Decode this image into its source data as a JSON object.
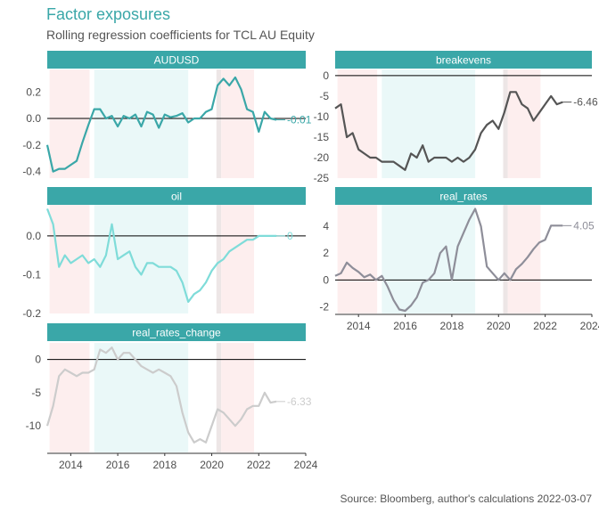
{
  "title": "Factor exposures",
  "subtitle": "Rolling regression coefficients for TCL AU Equity",
  "caption": "Source: Bloomberg, author's calculations 2022-03-07",
  "chart_data": {
    "type": "line",
    "x_ticks": [
      "2014",
      "2016",
      "2018",
      "2020",
      "2022",
      "2024"
    ],
    "xlim": [
      2013,
      2024
    ],
    "regimes": [
      {
        "from": 2013.1,
        "to": 2014.8,
        "color": "#fdeeee"
      },
      {
        "from": 2015.0,
        "to": 2019.0,
        "color": "#eaf8f8"
      },
      {
        "from": 2020.2,
        "to": 2020.4,
        "color": "#ede6e6"
      },
      {
        "from": 2020.4,
        "to": 2021.8,
        "color": "#fdeeee"
      }
    ],
    "panels": [
      {
        "name": "AUDUSD",
        "color": "#3aa7a8",
        "ylim": [
          -0.45,
          0.37
        ],
        "yticks": [
          "0.2",
          "0.0",
          "-0.2",
          "-0.4"
        ],
        "ytick_values": [
          0.2,
          0.0,
          -0.2,
          -0.4
        ],
        "end_label": "-0.01",
        "x": [
          2013.0,
          2013.25,
          2013.5,
          2013.75,
          2014.0,
          2014.25,
          2014.5,
          2014.75,
          2015.0,
          2015.25,
          2015.5,
          2015.75,
          2016.0,
          2016.25,
          2016.5,
          2016.75,
          2017.0,
          2017.25,
          2017.5,
          2017.75,
          2018.0,
          2018.25,
          2018.5,
          2018.75,
          2019.0,
          2019.25,
          2019.5,
          2019.75,
          2020.0,
          2020.25,
          2020.5,
          2020.75,
          2021.0,
          2021.25,
          2021.5,
          2021.75,
          2022.0,
          2022.25,
          2022.5,
          2022.75
        ],
        "values": [
          -0.2,
          -0.4,
          -0.38,
          -0.38,
          -0.35,
          -0.32,
          -0.18,
          -0.05,
          0.07,
          0.07,
          0.0,
          0.02,
          -0.06,
          0.02,
          0.0,
          0.03,
          -0.06,
          0.05,
          0.03,
          -0.07,
          0.03,
          0.01,
          0.02,
          0.04,
          -0.03,
          0.0,
          0.0,
          0.05,
          0.07,
          0.25,
          0.3,
          0.25,
          0.31,
          0.22,
          0.07,
          0.05,
          -0.1,
          0.05,
          0.0,
          -0.01
        ]
      },
      {
        "name": "breakevens",
        "color": "#555555",
        "ylim": [
          -25,
          1.5
        ],
        "yticks": [
          "0",
          "-5",
          "-10",
          "-15",
          "-20",
          "-25"
        ],
        "ytick_values": [
          0,
          -5,
          -10,
          -15,
          -20,
          -25
        ],
        "end_label": "-6.46",
        "x": [
          2013.0,
          2013.25,
          2013.5,
          2013.75,
          2014.0,
          2014.25,
          2014.5,
          2014.75,
          2015.0,
          2015.25,
          2015.5,
          2015.75,
          2016.0,
          2016.25,
          2016.5,
          2016.75,
          2017.0,
          2017.25,
          2017.5,
          2017.75,
          2018.0,
          2018.25,
          2018.5,
          2018.75,
          2019.0,
          2019.25,
          2019.5,
          2019.75,
          2020.0,
          2020.25,
          2020.5,
          2020.75,
          2021.0,
          2021.25,
          2021.5,
          2021.75,
          2022.0,
          2022.25,
          2022.5,
          2022.75
        ],
        "values": [
          -8,
          -7,
          -15,
          -14,
          -18,
          -19,
          -20,
          -20,
          -21,
          -21,
          -21,
          -22,
          -23,
          -19,
          -20,
          -17,
          -21,
          -20,
          -20,
          -20,
          -21,
          -20,
          -21,
          -20,
          -18,
          -14,
          -12,
          -11,
          -13,
          -9,
          -4,
          -4,
          -7,
          -8,
          -11,
          -9,
          -7,
          -5,
          -7,
          -6.46
        ]
      },
      {
        "name": "oil",
        "color": "#7fdcd9",
        "ylim": [
          -0.2,
          0.08
        ],
        "yticks": [
          "0.0",
          "-0.1",
          "-0.2"
        ],
        "ytick_values": [
          0.0,
          -0.1,
          -0.2
        ],
        "end_label": "0",
        "x": [
          2013.0,
          2013.25,
          2013.5,
          2013.75,
          2014.0,
          2014.25,
          2014.5,
          2014.75,
          2015.0,
          2015.25,
          2015.5,
          2015.75,
          2016.0,
          2016.25,
          2016.5,
          2016.75,
          2017.0,
          2017.25,
          2017.5,
          2017.75,
          2018.0,
          2018.25,
          2018.5,
          2018.75,
          2019.0,
          2019.25,
          2019.5,
          2019.75,
          2020.0,
          2020.25,
          2020.5,
          2020.75,
          2021.0,
          2021.25,
          2021.5,
          2021.75,
          2022.0,
          2022.25,
          2022.5,
          2022.75
        ],
        "values": [
          0.07,
          0.03,
          -0.08,
          -0.05,
          -0.07,
          -0.06,
          -0.05,
          -0.07,
          -0.06,
          -0.08,
          -0.05,
          0.03,
          -0.06,
          -0.05,
          -0.04,
          -0.08,
          -0.1,
          -0.07,
          -0.07,
          -0.08,
          -0.08,
          -0.08,
          -0.09,
          -0.12,
          -0.17,
          -0.15,
          -0.14,
          -0.12,
          -0.09,
          -0.07,
          -0.06,
          -0.04,
          -0.03,
          -0.02,
          -0.01,
          -0.01,
          0.0,
          0.0,
          0.0,
          0.0
        ]
      },
      {
        "name": "real_rates",
        "color": "#8e8e99",
        "ylim": [
          -2.5,
          5.6
        ],
        "yticks": [
          "4",
          "2",
          "0",
          "-2"
        ],
        "ytick_values": [
          4,
          2,
          0,
          -2
        ],
        "end_label": "4.05",
        "x": [
          2013.0,
          2013.25,
          2013.5,
          2013.75,
          2014.0,
          2014.25,
          2014.5,
          2014.75,
          2015.0,
          2015.25,
          2015.5,
          2015.75,
          2016.0,
          2016.25,
          2016.5,
          2016.75,
          2017.0,
          2017.25,
          2017.5,
          2017.75,
          2018.0,
          2018.25,
          2018.5,
          2018.75,
          2019.0,
          2019.25,
          2019.5,
          2019.75,
          2020.0,
          2020.25,
          2020.5,
          2020.75,
          2021.0,
          2021.25,
          2021.5,
          2021.75,
          2022.0,
          2022.25,
          2022.5,
          2022.75
        ],
        "values": [
          0.3,
          0.5,
          1.3,
          0.9,
          0.6,
          0.2,
          0.4,
          0.0,
          0.3,
          -0.5,
          -1.5,
          -2.2,
          -2.3,
          -1.9,
          -1.3,
          -0.2,
          0.0,
          0.5,
          2.0,
          2.5,
          0.0,
          2.5,
          3.5,
          4.5,
          5.3,
          4.0,
          1.0,
          0.5,
          0.0,
          0.5,
          0.0,
          0.8,
          1.2,
          1.7,
          2.3,
          2.8,
          3.0,
          4.05,
          4.05,
          4.05
        ]
      },
      {
        "name": "real_rates_change",
        "color": "#cccccc",
        "ylim": [
          -14,
          2.5
        ],
        "yticks": [
          "0",
          "-5",
          "-10"
        ],
        "ytick_values": [
          0,
          -5,
          -10
        ],
        "end_label": "-6.33",
        "x": [
          2013.0,
          2013.25,
          2013.5,
          2013.75,
          2014.0,
          2014.25,
          2014.5,
          2014.75,
          2015.0,
          2015.25,
          2015.5,
          2015.75,
          2016.0,
          2016.25,
          2016.5,
          2016.75,
          2017.0,
          2017.25,
          2017.5,
          2017.75,
          2018.0,
          2018.25,
          2018.5,
          2018.75,
          2019.0,
          2019.25,
          2019.5,
          2019.75,
          2020.0,
          2020.25,
          2020.5,
          2020.75,
          2021.0,
          2021.25,
          2021.5,
          2021.75,
          2022.0,
          2022.25,
          2022.5,
          2022.75
        ],
        "values": [
          -10,
          -7,
          -2.5,
          -1.5,
          -2,
          -2.5,
          -2,
          -2,
          -1.5,
          1.5,
          1.0,
          1.8,
          0.0,
          1.0,
          1.0,
          0.0,
          -1,
          -1.5,
          -2,
          -1.5,
          -2,
          -2.5,
          -4,
          -8,
          -11,
          -12.5,
          -12,
          -12.5,
          -10,
          -7.5,
          -8,
          -9,
          -10,
          -9,
          -7.5,
          -7,
          -7,
          -5,
          -6.5,
          -6.33
        ]
      }
    ]
  }
}
